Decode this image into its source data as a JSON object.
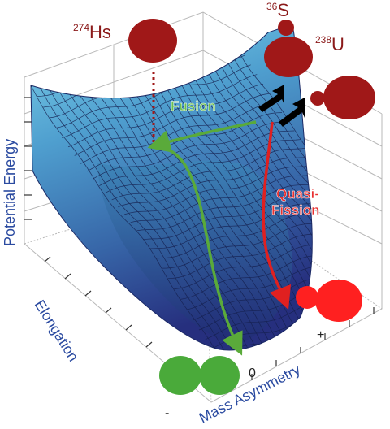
{
  "axes": {
    "z_label": "Potential Energy",
    "y_label": "Elongation",
    "x_label": "Mass Asymmetry",
    "x_ticks": [
      "-",
      "0",
      "+"
    ]
  },
  "paths": {
    "fusion": "Fusion",
    "quasi_fission": [
      "Quasi-",
      "Fission"
    ]
  },
  "nuclei": {
    "compound_mass": "274",
    "compound_symbol": "Hs",
    "projectile_mass": "36",
    "projectile_symbol": "S",
    "target_mass": "238",
    "target_symbol": "U"
  },
  "colors": {
    "surface_top": "#6ec8e0",
    "surface_mid": "#3a78b0",
    "surface_bottom": "#2a3a8a",
    "fusion_arrow": "#5aaa3a",
    "quasi_fission_arrow": "#e02020",
    "nucleus_dark_red": "#a01818",
    "fragment_red": "#ff2020",
    "fragment_green": "#4aaa3a",
    "axis_label_blue": "#2a4aa0"
  }
}
